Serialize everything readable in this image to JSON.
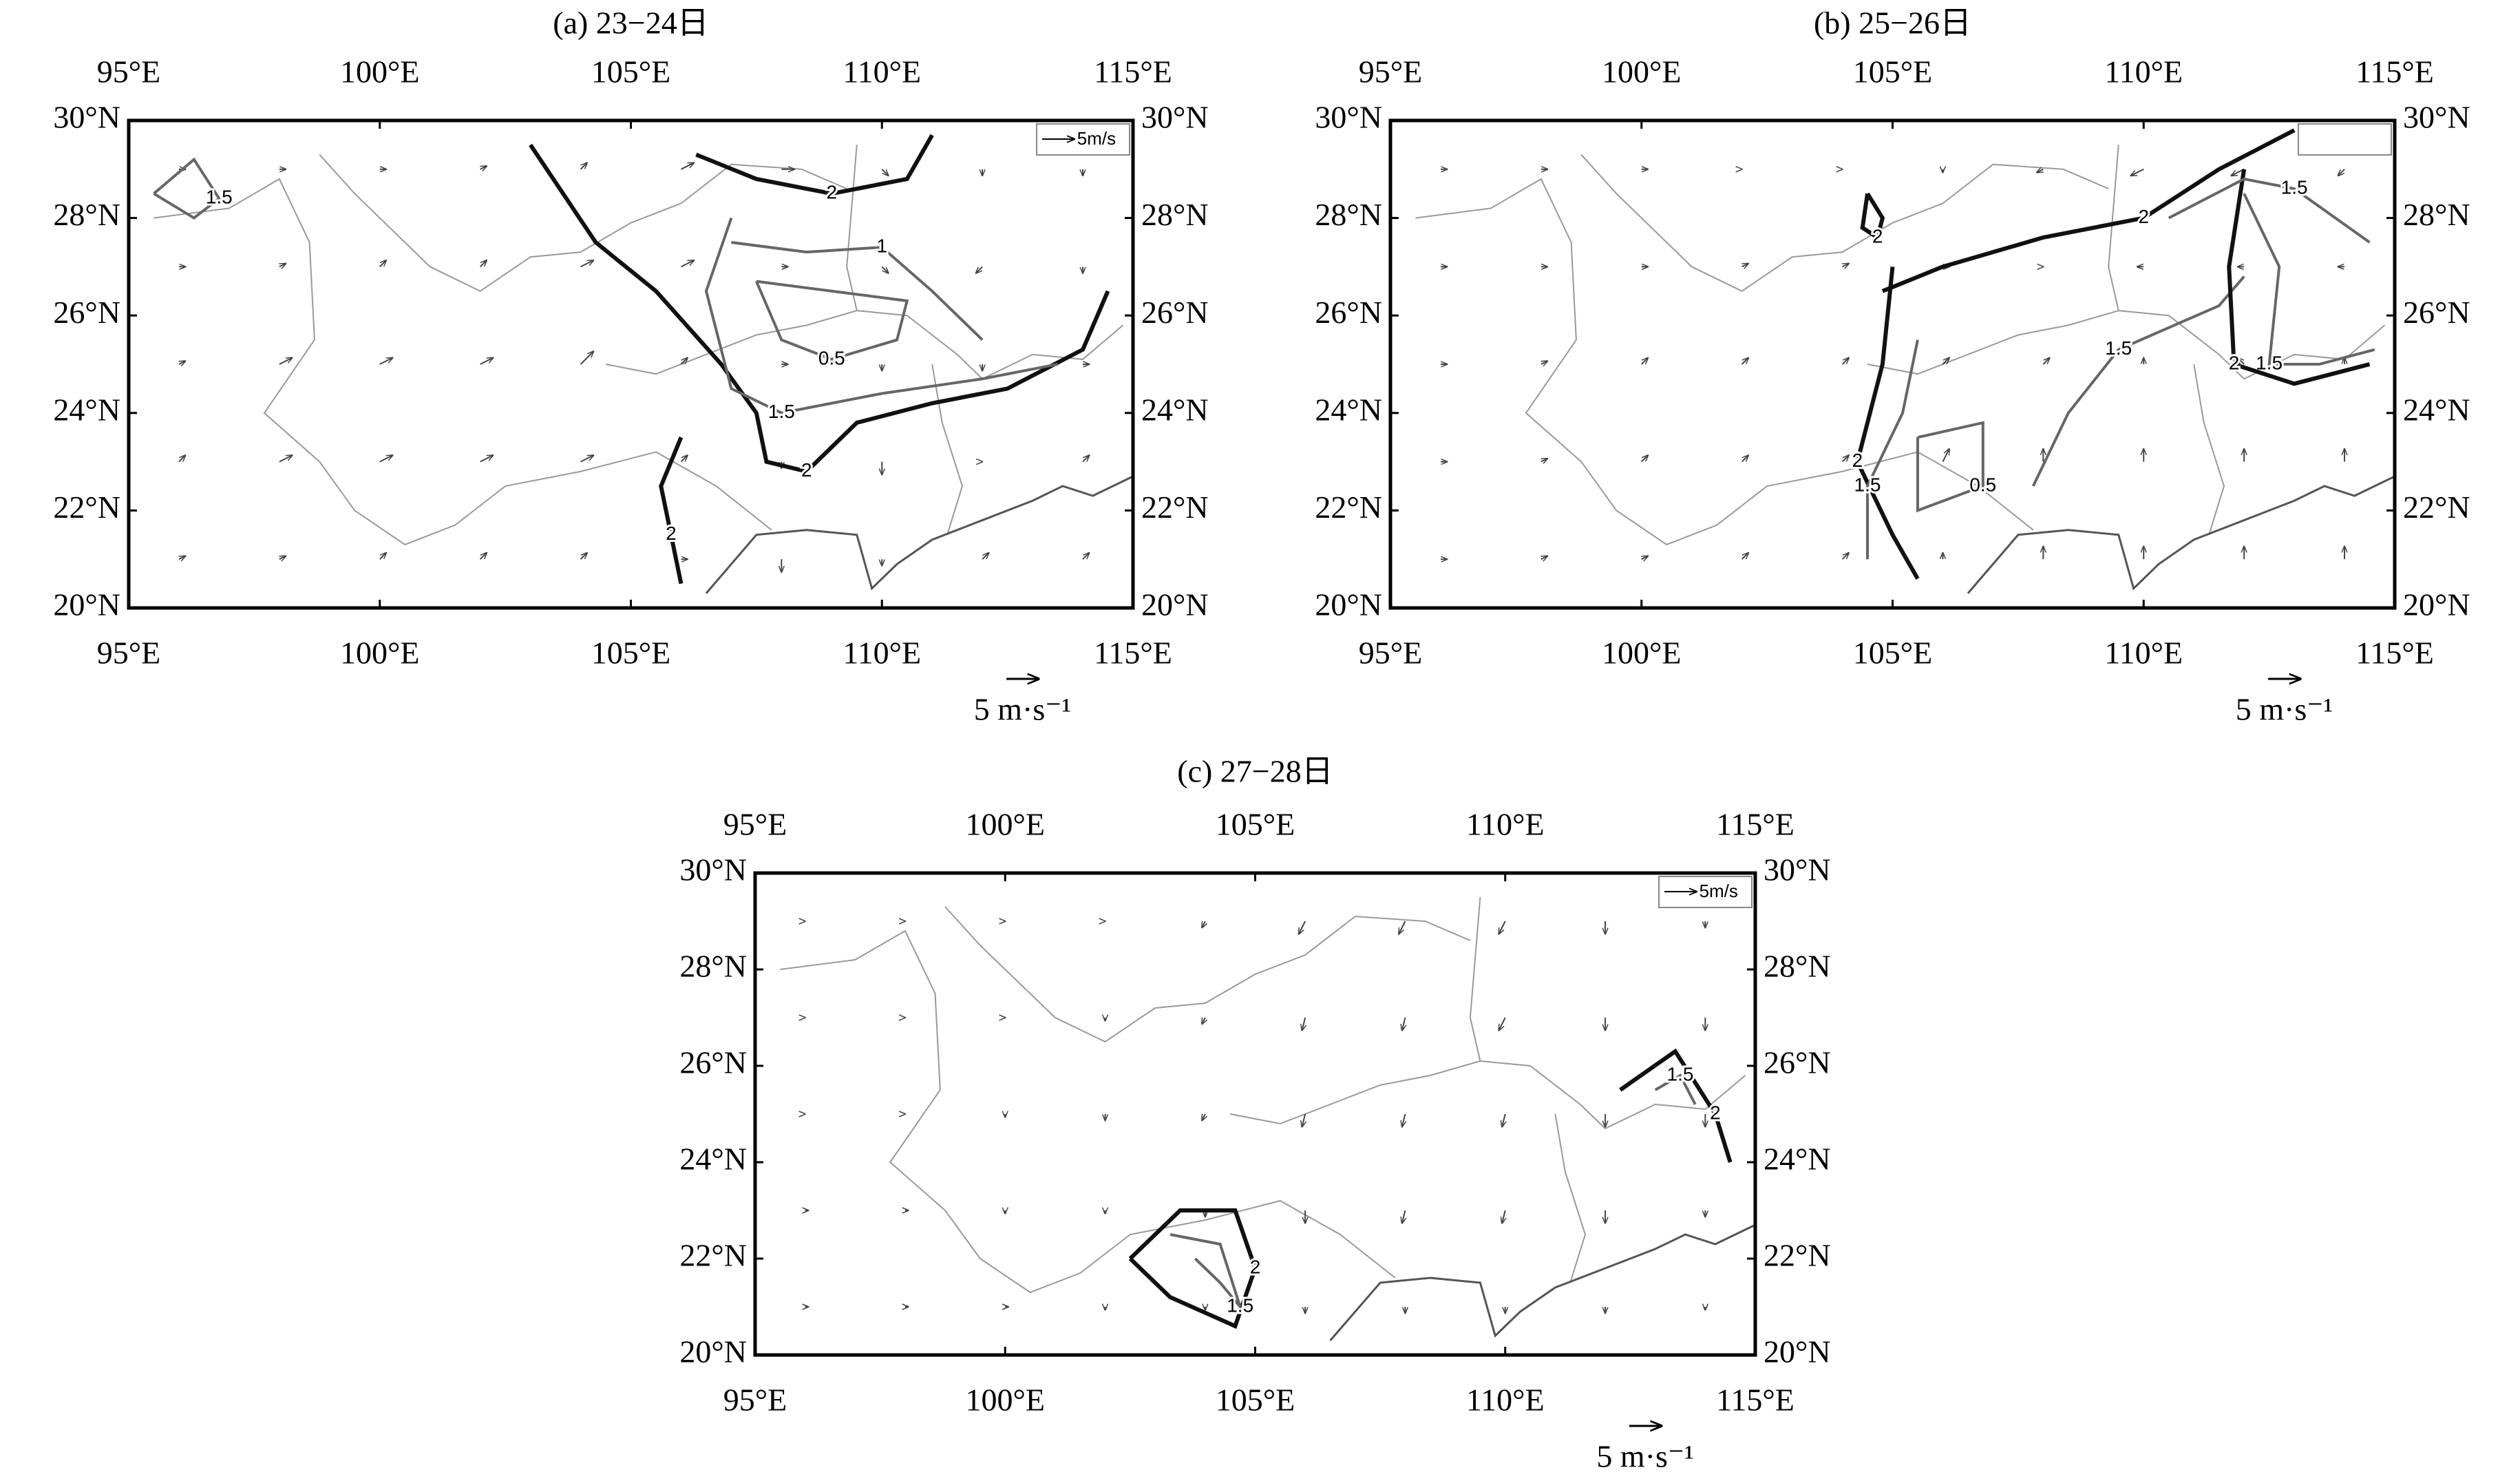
{
  "chart_data": [
    {
      "type": "vector-map",
      "title": "(a) 23−24日",
      "xlim": [
        95,
        115
      ],
      "ylim": [
        20,
        30
      ],
      "xticks": [
        {
          "value": 95,
          "label": "95°E"
        },
        {
          "value": 100,
          "label": "100°E"
        },
        {
          "value": 105,
          "label": "105°E"
        },
        {
          "value": 110,
          "label": "110°E"
        },
        {
          "value": 115,
          "label": "115°E"
        }
      ],
      "yticks": [
        {
          "value": 20,
          "label": "20°N"
        },
        {
          "value": 22,
          "label": "22°N"
        },
        {
          "value": 24,
          "label": "24°N"
        },
        {
          "value": 26,
          "label": "26°N"
        },
        {
          "value": 28,
          "label": "28°N"
        },
        {
          "value": 30,
          "label": "30°N"
        }
      ],
      "vector_key": {
        "label": "5 m·s⁻¹",
        "value": 5
      },
      "inset_key": {
        "label": "5m/s",
        "value": 5
      },
      "x": [
        96,
        98,
        100,
        102,
        104,
        106,
        108,
        110,
        112,
        114
      ],
      "y": [
        21,
        23,
        25,
        27,
        29
      ],
      "u": [
        [
          1,
          1,
          1,
          1,
          1,
          1,
          0,
          0,
          1,
          1
        ],
        [
          1,
          2,
          2,
          2,
          2,
          1,
          0,
          0,
          0,
          1
        ],
        [
          1,
          2,
          2,
          2,
          2,
          1,
          1,
          0,
          0,
          1
        ],
        [
          1,
          1,
          1,
          1,
          2,
          2,
          1,
          1,
          -1,
          0
        ],
        [
          1,
          1,
          1,
          1,
          1,
          2,
          2,
          1,
          0,
          0
        ]
      ],
      "v": [
        [
          0.5,
          0.5,
          1,
          1,
          1,
          0,
          -2,
          -1,
          1,
          1
        ],
        [
          1,
          1,
          1,
          1,
          1,
          1,
          -1,
          -2,
          0,
          1
        ],
        [
          0.5,
          1,
          1,
          1,
          2,
          1,
          0,
          -1,
          -1,
          0
        ],
        [
          0,
          0.5,
          1,
          1,
          1,
          1,
          0,
          -1,
          -1,
          -1
        ],
        [
          0,
          0,
          0,
          0.5,
          1,
          1,
          0,
          -1,
          -1,
          -1
        ]
      ],
      "contours": [
        {
          "level": 2,
          "lon": [
            103,
            104.3,
            105.5,
            106.8,
            107.5,
            107.7,
            108.5,
            109.5,
            111,
            112.5,
            114,
            114.5
          ],
          "lat": [
            29.5,
            27.5,
            26.5,
            25,
            24,
            23,
            22.8,
            23.8,
            24.2,
            24.5,
            25.3,
            26.5
          ]
        },
        {
          "level": 2,
          "lon": [
            106.3,
            107.5,
            109,
            110.5,
            111
          ],
          "lat": [
            29.3,
            28.8,
            28.5,
            28.8,
            29.7
          ]
        },
        {
          "level": 1.5,
          "lon": [
            107,
            106.5,
            107,
            108,
            110,
            112,
            113.5
          ],
          "lat": [
            28,
            26.5,
            24.5,
            24,
            24.4,
            24.7,
            25
          ]
        },
        {
          "level": 1,
          "lon": [
            107,
            108.5,
            110,
            111,
            112
          ],
          "lat": [
            27.5,
            27.3,
            27.4,
            26.5,
            25.5
          ]
        },
        {
          "level": 0.5,
          "lon": [
            107.5,
            110.5,
            110.3,
            109,
            108,
            107.5
          ],
          "lat": [
            26.7,
            26.3,
            25.5,
            25.1,
            25.5,
            26.7
          ]
        },
        {
          "level": 1.5,
          "lon": [
            95.5,
            96.3,
            96.8,
            96.3,
            95.5
          ],
          "lat": [
            28.5,
            29.2,
            28.4,
            28,
            28.5
          ]
        },
        {
          "level": 2,
          "lon": [
            106,
            105.6,
            105.8,
            106
          ],
          "lat": [
            23.5,
            22.5,
            21.5,
            20.5
          ]
        }
      ]
    },
    {
      "type": "vector-map",
      "title": "(b) 25−26日",
      "xlim": [
        95,
        115
      ],
      "ylim": [
        20,
        30
      ],
      "xticks": [
        {
          "value": 95,
          "label": "95°E"
        },
        {
          "value": 100,
          "label": "100°E"
        },
        {
          "value": 105,
          "label": "105°E"
        },
        {
          "value": 110,
          "label": "110°E"
        },
        {
          "value": 115,
          "label": "115°E"
        }
      ],
      "yticks": [
        {
          "value": 20,
          "label": "20°N"
        },
        {
          "value": 22,
          "label": "22°N"
        },
        {
          "value": 24,
          "label": "24°N"
        },
        {
          "value": 26,
          "label": "26°N"
        },
        {
          "value": 28,
          "label": "28°N"
        },
        {
          "value": 30,
          "label": "30°N"
        }
      ],
      "vector_key": {
        "label": "5 m·s⁻¹",
        "value": 5
      },
      "x": [
        96,
        98,
        100,
        102,
        104,
        106,
        108,
        110,
        112,
        114
      ],
      "y": [
        21,
        23,
        25,
        27,
        29
      ],
      "u": [
        [
          1,
          1,
          1,
          1,
          1,
          0,
          0,
          0,
          0,
          0
        ],
        [
          1,
          1,
          1,
          1,
          1,
          1,
          0,
          0,
          0,
          0
        ],
        [
          1,
          1,
          1,
          1,
          1,
          1,
          1,
          0,
          -1,
          0
        ],
        [
          1,
          1,
          1,
          1,
          1,
          1,
          0,
          -1,
          -1,
          -1
        ],
        [
          1,
          1,
          1,
          0,
          0,
          0,
          -1,
          -2,
          -2,
          -1
        ]
      ],
      "v": [
        [
          0,
          0.5,
          0.5,
          1,
          1,
          1,
          2,
          2,
          2,
          2
        ],
        [
          0,
          0.5,
          1,
          1,
          1,
          2,
          2,
          2,
          2,
          2
        ],
        [
          0,
          0.5,
          1,
          1,
          1,
          1,
          1,
          1,
          1,
          1
        ],
        [
          0,
          0,
          0,
          0.5,
          0.5,
          0,
          0,
          0,
          0,
          0
        ],
        [
          0,
          0,
          0,
          0,
          0,
          -0.5,
          -0.5,
          -1,
          -1,
          -1
        ]
      ],
      "contours": [
        {
          "level": 2,
          "lon": [
            104.8,
            106,
            108,
            110,
            111.5,
            113
          ],
          "lat": [
            26.5,
            27,
            27.6,
            28,
            29,
            29.8
          ]
        },
        {
          "level": 2,
          "lon": [
            105,
            104.8,
            104.3,
            105,
            105.5
          ],
          "lat": [
            27,
            25,
            23,
            21.5,
            20.6
          ]
        },
        {
          "level": 1.5,
          "lon": [
            105.5,
            105.2,
            104.5,
            104.5
          ],
          "lat": [
            25.5,
            24,
            22.5,
            21
          ]
        },
        {
          "level": 0.5,
          "lon": [
            105.5,
            106.8,
            106.8,
            105.5,
            105.5
          ],
          "lat": [
            23.5,
            23.8,
            22.5,
            22,
            23.5
          ]
        },
        {
          "level": 1.5,
          "lon": [
            107.8,
            108.5,
            109.5,
            111.5,
            112
          ],
          "lat": [
            22.5,
            24,
            25.3,
            26.2,
            26.8
          ]
        },
        {
          "level": 1.5,
          "lon": [
            112,
            112.7,
            112.5,
            113.5,
            114.6
          ],
          "lat": [
            28.5,
            27,
            25,
            25,
            25.3
          ]
        },
        {
          "level": 2,
          "lon": [
            112,
            111.7,
            111.8,
            113,
            114.5
          ],
          "lat": [
            29,
            27,
            25,
            24.6,
            25
          ]
        },
        {
          "level": 1.5,
          "lon": [
            110.5,
            112,
            113,
            114.5
          ],
          "lat": [
            28,
            28.8,
            28.6,
            27.5
          ]
        },
        {
          "level": 2,
          "lon": [
            104.5,
            104.8,
            104.7,
            104.4,
            104.5
          ],
          "lat": [
            28.5,
            28,
            27.6,
            27.8,
            28.5
          ]
        }
      ]
    },
    {
      "type": "vector-map",
      "title": "(c) 27−28日",
      "xlim": [
        95,
        115
      ],
      "ylim": [
        20,
        30
      ],
      "xticks": [
        {
          "value": 95,
          "label": "95°E"
        },
        {
          "value": 100,
          "label": "100°E"
        },
        {
          "value": 105,
          "label": "105°E"
        },
        {
          "value": 110,
          "label": "110°E"
        },
        {
          "value": 115,
          "label": "115°E"
        }
      ],
      "yticks": [
        {
          "value": 20,
          "label": "20°N"
        },
        {
          "value": 22,
          "label": "22°N"
        },
        {
          "value": 24,
          "label": "24°N"
        },
        {
          "value": 26,
          "label": "26°N"
        },
        {
          "value": 28,
          "label": "28°N"
        },
        {
          "value": 30,
          "label": "30°N"
        }
      ],
      "vector_key": {
        "label": "5 m·s⁻¹",
        "value": 5
      },
      "inset_key": {
        "label": "5m/s",
        "value": 5
      },
      "x": [
        96,
        98,
        100,
        102,
        104,
        106,
        108,
        110,
        112,
        114
      ],
      "y": [
        21,
        23,
        25,
        27,
        29
      ],
      "u": [
        [
          0.5,
          0.5,
          0.5,
          0,
          0,
          0,
          0,
          0,
          0,
          0
        ],
        [
          0.5,
          0.5,
          0,
          0,
          0,
          0,
          -0.5,
          -0.5,
          0,
          0
        ],
        [
          0,
          0,
          0,
          0,
          -0.5,
          -0.5,
          -0.5,
          -0.5,
          0,
          0
        ],
        [
          0,
          0,
          0,
          0,
          -0.5,
          -0.5,
          -0.5,
          -1,
          0,
          0
        ],
        [
          0,
          0,
          0,
          0,
          -0.5,
          -1,
          -1,
          -1,
          0,
          0
        ]
      ],
      "v": [
        [
          0,
          0,
          0,
          -0.5,
          -0.5,
          -1,
          -1,
          -1,
          -1,
          -0.5
        ],
        [
          0,
          0,
          -0.5,
          -0.5,
          -1,
          -2,
          -2,
          -2,
          -2,
          -1
        ],
        [
          0,
          0,
          -0.5,
          -1,
          -1,
          -2,
          -2,
          -2,
          -2,
          -2
        ],
        [
          0,
          0,
          0,
          -0.5,
          -1,
          -2,
          -2,
          -2,
          -2,
          -2
        ],
        [
          0,
          0,
          0,
          0,
          -1,
          -2,
          -2,
          -2,
          -2,
          -1
        ]
      ],
      "contours": [
        {
          "level": 2,
          "lon": [
            102.5,
            103.5,
            104.6,
            105,
            104.6,
            103.3,
            102.5
          ],
          "lat": [
            22,
            23,
            23,
            21.8,
            20.6,
            21.2,
            22
          ]
        },
        {
          "level": 1.5,
          "lon": [
            103.3,
            104.3,
            104.7,
            104.3,
            103.8
          ],
          "lat": [
            22.5,
            22.3,
            21,
            21.5,
            22
          ]
        },
        {
          "level": 2,
          "lon": [
            112.3,
            113.4,
            114.2,
            114.5
          ],
          "lat": [
            25.5,
            26.3,
            25,
            24
          ]
        },
        {
          "level": 1.5,
          "lon": [
            113,
            113.5,
            113.8
          ],
          "lat": [
            25.5,
            25.8,
            25.2
          ]
        }
      ]
    }
  ]
}
